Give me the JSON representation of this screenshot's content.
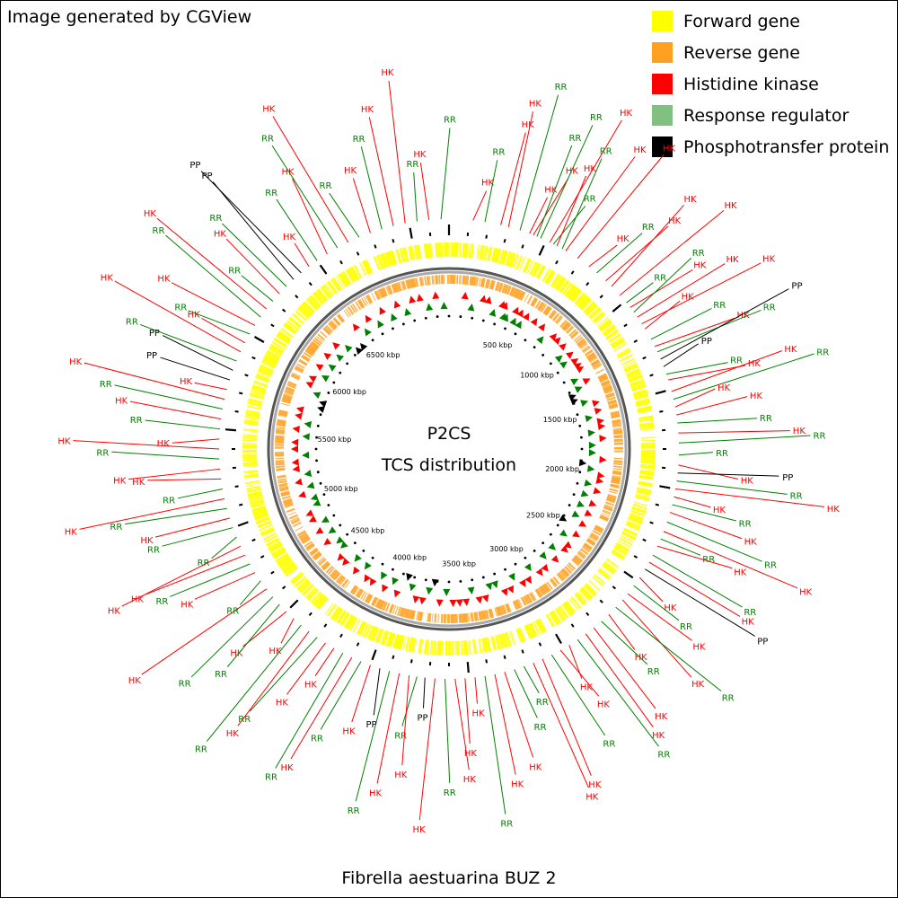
{
  "header": {
    "credit": "Image generated by CGView"
  },
  "legend": {
    "items": [
      {
        "label": "Forward gene",
        "color": "#ffff00"
      },
      {
        "label": "Reverse gene",
        "color": "#ffa020"
      },
      {
        "label": "Histidine kinase",
        "color": "#ff0000"
      },
      {
        "label": "Response regulator",
        "color": "#80c080"
      },
      {
        "label": "Phosphotransfer protein",
        "color": "#000000"
      }
    ]
  },
  "map": {
    "title_line1": "P2CS",
    "title_line2": "TCS distribution",
    "organism": "Fibrella aestuarina BUZ 2",
    "genome_size_kbp": 7200,
    "scale_labels": [
      {
        "kbp": 500,
        "text": "500 kbp"
      },
      {
        "kbp": 1000,
        "text": "1000 kbp"
      },
      {
        "kbp": 1500,
        "text": "1500 kbp"
      },
      {
        "kbp": 2000,
        "text": "2000 kbp"
      },
      {
        "kbp": 2500,
        "text": "2500 kbp"
      },
      {
        "kbp": 3000,
        "text": "3000 kbp"
      },
      {
        "kbp": 3500,
        "text": "3500 kbp"
      },
      {
        "kbp": 4000,
        "text": "4000 kbp"
      },
      {
        "kbp": 4500,
        "text": "4500 kbp"
      },
      {
        "kbp": 5000,
        "text": "5000 kbp"
      },
      {
        "kbp": 5500,
        "text": "5500 kbp"
      },
      {
        "kbp": 6000,
        "text": "6000 kbp"
      },
      {
        "kbp": 6500,
        "text": "6500 kbp"
      }
    ],
    "label_colors": {
      "HK": "#ff0000",
      "RR": "#008000",
      "PP": "#000000"
    },
    "features": [
      {
        "kbp": 120,
        "type": "HK"
      },
      {
        "kbp": 180,
        "type": "RR"
      },
      {
        "kbp": 260,
        "type": "HK"
      },
      {
        "kbp": 300,
        "type": "HK"
      },
      {
        "kbp": 360,
        "type": "RR"
      },
      {
        "kbp": 410,
        "type": "HK"
      },
      {
        "kbp": 430,
        "type": "HK"
      },
      {
        "kbp": 450,
        "type": "RR"
      },
      {
        "kbp": 470,
        "type": "RR"
      },
      {
        "kbp": 520,
        "type": "HK"
      },
      {
        "kbp": 540,
        "type": "RR"
      },
      {
        "kbp": 560,
        "type": "HK"
      },
      {
        "kbp": 590,
        "type": "RR"
      },
      {
        "kbp": 610,
        "type": "HK"
      },
      {
        "kbp": 680,
        "type": "HK"
      },
      {
        "kbp": 750,
        "type": "HK"
      },
      {
        "kbp": 800,
        "type": "RR"
      },
      {
        "kbp": 860,
        "type": "HK"
      },
      {
        "kbp": 900,
        "type": "HK"
      },
      {
        "kbp": 960,
        "type": "HK"
      },
      {
        "kbp": 1010,
        "type": "RR"
      },
      {
        "kbp": 1040,
        "type": "HK"
      },
      {
        "kbp": 1070,
        "type": "RR"
      },
      {
        "kbp": 1100,
        "type": "HK"
      },
      {
        "kbp": 1140,
        "type": "HK"
      },
      {
        "kbp": 1170,
        "type": "HK"
      },
      {
        "kbp": 1230,
        "type": "RR"
      },
      {
        "kbp": 1270,
        "type": "HK"
      },
      {
        "kbp": 1300,
        "type": "RR"
      },
      {
        "kbp": 1340,
        "type": "PP"
      },
      {
        "kbp": 1380,
        "type": "PP"
      },
      {
        "kbp": 1420,
        "type": "RR"
      },
      {
        "kbp": 1450,
        "type": "HK"
      },
      {
        "kbp": 1510,
        "type": "HK"
      },
      {
        "kbp": 1550,
        "type": "RR"
      },
      {
        "kbp": 1590,
        "type": "HK"
      },
      {
        "kbp": 1630,
        "type": "HK"
      },
      {
        "kbp": 1670,
        "type": "RR"
      },
      {
        "kbp": 1720,
        "type": "HK"
      },
      {
        "kbp": 1770,
        "type": "RR"
      },
      {
        "kbp": 1830,
        "type": "RR"
      },
      {
        "kbp": 1880,
        "type": "HK"
      },
      {
        "kbp": 1920,
        "type": "PP"
      },
      {
        "kbp": 1960,
        "type": "RR"
      },
      {
        "kbp": 2000,
        "type": "HK"
      },
      {
        "kbp": 2040,
        "type": "HK"
      },
      {
        "kbp": 2080,
        "type": "RR"
      },
      {
        "kbp": 2120,
        "type": "HK"
      },
      {
        "kbp": 2170,
        "type": "RR"
      },
      {
        "kbp": 2220,
        "type": "HK"
      },
      {
        "kbp": 2260,
        "type": "RR"
      },
      {
        "kbp": 2300,
        "type": "HK"
      },
      {
        "kbp": 2350,
        "type": "RR"
      },
      {
        "kbp": 2390,
        "type": "HK"
      },
      {
        "kbp": 2430,
        "type": "PP"
      },
      {
        "kbp": 2480,
        "type": "HK"
      },
      {
        "kbp": 2530,
        "type": "RR"
      },
      {
        "kbp": 2580,
        "type": "HK"
      },
      {
        "kbp": 2620,
        "type": "HK"
      },
      {
        "kbp": 2670,
        "type": "RR"
      },
      {
        "kbp": 2720,
        "type": "HK"
      },
      {
        "kbp": 2770,
        "type": "RR"
      },
      {
        "kbp": 2820,
        "type": "HK"
      },
      {
        "kbp": 2870,
        "type": "HK"
      },
      {
        "kbp": 2920,
        "type": "RR"
      },
      {
        "kbp": 2970,
        "type": "HK"
      },
      {
        "kbp": 3020,
        "type": "HK"
      },
      {
        "kbp": 3070,
        "type": "RR"
      },
      {
        "kbp": 3120,
        "type": "HK"
      },
      {
        "kbp": 3170,
        "type": "HK"
      },
      {
        "kbp": 3220,
        "type": "RR"
      },
      {
        "kbp": 3270,
        "type": "RR"
      },
      {
        "kbp": 3320,
        "type": "HK"
      },
      {
        "kbp": 3370,
        "type": "HK"
      },
      {
        "kbp": 3420,
        "type": "RR"
      },
      {
        "kbp": 3470,
        "type": "HK"
      },
      {
        "kbp": 3520,
        "type": "HK"
      },
      {
        "kbp": 3570,
        "type": "HK"
      },
      {
        "kbp": 3620,
        "type": "RR"
      },
      {
        "kbp": 3670,
        "type": "HK"
      },
      {
        "kbp": 3720,
        "type": "PP"
      },
      {
        "kbp": 3760,
        "type": "RR"
      },
      {
        "kbp": 3800,
        "type": "HK"
      },
      {
        "kbp": 3850,
        "type": "HK"
      },
      {
        "kbp": 3900,
        "type": "RR"
      },
      {
        "kbp": 3950,
        "type": "PP"
      },
      {
        "kbp": 4000,
        "type": "HK"
      },
      {
        "kbp": 4050,
        "type": "RR"
      },
      {
        "kbp": 4100,
        "type": "HK"
      },
      {
        "kbp": 4150,
        "type": "RR"
      },
      {
        "kbp": 4200,
        "type": "HK"
      },
      {
        "kbp": 4250,
        "type": "HK"
      },
      {
        "kbp": 4300,
        "type": "RR"
      },
      {
        "kbp": 4350,
        "type": "HK"
      },
      {
        "kbp": 4400,
        "type": "RR"
      },
      {
        "kbp": 4450,
        "type": "HK"
      },
      {
        "kbp": 4500,
        "type": "HK"
      },
      {
        "kbp": 4550,
        "type": "RR"
      },
      {
        "kbp": 4600,
        "type": "RR"
      },
      {
        "kbp": 4650,
        "type": "HK"
      },
      {
        "kbp": 4700,
        "type": "RR"
      },
      {
        "kbp": 4750,
        "type": "HK"
      },
      {
        "kbp": 4800,
        "type": "RR"
      },
      {
        "kbp": 4850,
        "type": "HK"
      },
      {
        "kbp": 4900,
        "type": "HK"
      },
      {
        "kbp": 4950,
        "type": "RR"
      },
      {
        "kbp": 5000,
        "type": "RR"
      },
      {
        "kbp": 5050,
        "type": "HK"
      },
      {
        "kbp": 5100,
        "type": "RR"
      },
      {
        "kbp": 5150,
        "type": "HK"
      },
      {
        "kbp": 5200,
        "type": "RR"
      },
      {
        "kbp": 5250,
        "type": "HK"
      },
      {
        "kbp": 5300,
        "type": "HK"
      },
      {
        "kbp": 5350,
        "type": "RR"
      },
      {
        "kbp": 5400,
        "type": "HK"
      },
      {
        "kbp": 5450,
        "type": "HK"
      },
      {
        "kbp": 5500,
        "type": "RR"
      },
      {
        "kbp": 5550,
        "type": "HK"
      },
      {
        "kbp": 5600,
        "type": "RR"
      },
      {
        "kbp": 5650,
        "type": "HK"
      },
      {
        "kbp": 5700,
        "type": "HK"
      },
      {
        "kbp": 5750,
        "type": "PP"
      },
      {
        "kbp": 5800,
        "type": "PP"
      },
      {
        "kbp": 5850,
        "type": "RR"
      },
      {
        "kbp": 5900,
        "type": "HK"
      },
      {
        "kbp": 5950,
        "type": "HK"
      },
      {
        "kbp": 6000,
        "type": "RR"
      },
      {
        "kbp": 6050,
        "type": "HK"
      },
      {
        "kbp": 6100,
        "type": "RR"
      },
      {
        "kbp": 6150,
        "type": "HK"
      },
      {
        "kbp": 6200,
        "type": "RR"
      },
      {
        "kbp": 6250,
        "type": "HK"
      },
      {
        "kbp": 6300,
        "type": "RR"
      },
      {
        "kbp": 6350,
        "type": "PP"
      },
      {
        "kbp": 6400,
        "type": "PP"
      },
      {
        "kbp": 6450,
        "type": "HK"
      },
      {
        "kbp": 6500,
        "type": "RR"
      },
      {
        "kbp": 6560,
        "type": "HK"
      },
      {
        "kbp": 6620,
        "type": "RR"
      },
      {
        "kbp": 6680,
        "type": "HK"
      },
      {
        "kbp": 6740,
        "type": "RR"
      },
      {
        "kbp": 6800,
        "type": "HK"
      },
      {
        "kbp": 6860,
        "type": "RR"
      },
      {
        "kbp": 6920,
        "type": "HK"
      },
      {
        "kbp": 6980,
        "type": "HK"
      },
      {
        "kbp": 7040,
        "type": "RR"
      },
      {
        "kbp": 7100,
        "type": "HK"
      },
      {
        "kbp": 7160,
        "type": "RR"
      }
    ]
  }
}
